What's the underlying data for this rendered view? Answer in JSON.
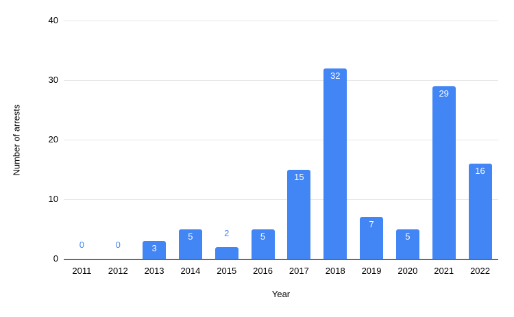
{
  "chart_data": {
    "type": "bar",
    "title": "",
    "xlabel": "Year",
    "ylabel": "Number of arrests",
    "categories": [
      "2011",
      "2012",
      "2013",
      "2014",
      "2015",
      "2016",
      "2017",
      "2018",
      "2019",
      "2020",
      "2021",
      "2022"
    ],
    "values": [
      0,
      0,
      3,
      5,
      2,
      5,
      15,
      32,
      7,
      5,
      29,
      16
    ],
    "value_labels": [
      "0",
      "0",
      "3",
      "5",
      "2",
      "5",
      "15",
      "32",
      "7",
      "5",
      "29",
      "16"
    ],
    "ylim": [
      0,
      40
    ],
    "yticks": [
      0,
      10,
      20,
      30,
      40
    ],
    "grid": true,
    "legend": "none",
    "colors": {
      "bar": "#4285f4",
      "label_inside": "#ffffff",
      "label_outside": "#4285f4",
      "gridline": "#e6e6e6",
      "axis_line": "#6b6b6b",
      "tick_text": "#000000"
    }
  }
}
